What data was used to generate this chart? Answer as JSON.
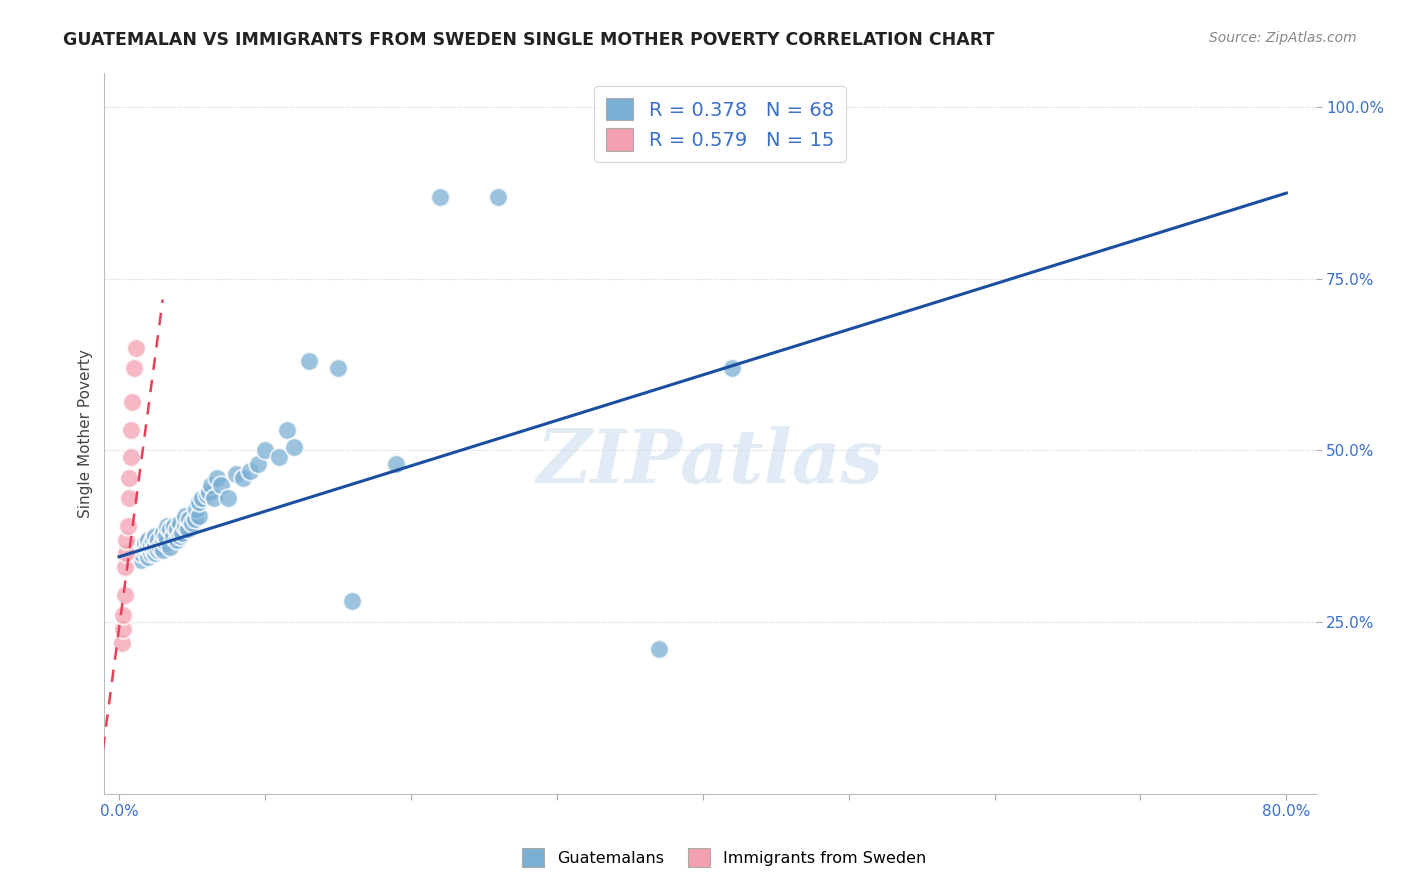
{
  "title": "GUATEMALAN VS IMMIGRANTS FROM SWEDEN SINGLE MOTHER POVERTY CORRELATION CHART",
  "source": "Source: ZipAtlas.com",
  "ylabel": "Single Mother Poverty",
  "xlim": [
    -0.01,
    0.82
  ],
  "ylim": [
    0.0,
    1.05
  ],
  "ytick_positions": [
    0.25,
    0.5,
    0.75,
    1.0
  ],
  "ytick_labels": [
    "25.0%",
    "50.0%",
    "75.0%",
    "100.0%"
  ],
  "guatemalan_R": 0.378,
  "guatemalan_N": 68,
  "sweden_R": 0.579,
  "sweden_N": 15,
  "blue_color": "#7BAFD4",
  "pink_color": "#F4A0B0",
  "blue_line_color": "#1A4FA0",
  "pink_line_color": "#E8405A",
  "watermark": "ZIPatlas",
  "guatemalan_x": [
    0.01,
    0.012,
    0.015,
    0.015,
    0.017,
    0.018,
    0.018,
    0.02,
    0.02,
    0.02,
    0.022,
    0.022,
    0.023,
    0.023,
    0.025,
    0.025,
    0.025,
    0.027,
    0.027,
    0.028,
    0.03,
    0.03,
    0.03,
    0.032,
    0.032,
    0.033,
    0.035,
    0.035,
    0.037,
    0.038,
    0.04,
    0.04,
    0.042,
    0.042,
    0.043,
    0.045,
    0.045,
    0.047,
    0.048,
    0.05,
    0.052,
    0.053,
    0.055,
    0.055,
    0.057,
    0.06,
    0.062,
    0.063,
    0.065,
    0.067,
    0.07,
    0.075,
    0.08,
    0.085,
    0.09,
    0.095,
    0.1,
    0.11,
    0.115,
    0.12,
    0.13,
    0.15,
    0.16,
    0.19,
    0.22,
    0.26,
    0.37,
    0.42
  ],
  "guatemalan_y": [
    0.355,
    0.36,
    0.34,
    0.35,
    0.355,
    0.36,
    0.365,
    0.345,
    0.36,
    0.37,
    0.35,
    0.362,
    0.355,
    0.37,
    0.35,
    0.36,
    0.375,
    0.355,
    0.37,
    0.36,
    0.355,
    0.37,
    0.38,
    0.365,
    0.375,
    0.39,
    0.36,
    0.385,
    0.375,
    0.39,
    0.37,
    0.385,
    0.375,
    0.395,
    0.38,
    0.39,
    0.405,
    0.385,
    0.4,
    0.395,
    0.4,
    0.415,
    0.405,
    0.425,
    0.43,
    0.435,
    0.44,
    0.45,
    0.43,
    0.46,
    0.45,
    0.43,
    0.465,
    0.46,
    0.47,
    0.48,
    0.5,
    0.49,
    0.53,
    0.505,
    0.63,
    0.62,
    0.28,
    0.48,
    0.87,
    0.87,
    0.21,
    0.62
  ],
  "sweden_x": [
    0.002,
    0.003,
    0.003,
    0.004,
    0.004,
    0.005,
    0.005,
    0.006,
    0.007,
    0.007,
    0.008,
    0.008,
    0.009,
    0.01,
    0.012
  ],
  "sweden_y": [
    0.22,
    0.24,
    0.26,
    0.29,
    0.33,
    0.35,
    0.37,
    0.39,
    0.43,
    0.46,
    0.49,
    0.53,
    0.57,
    0.62,
    0.65
  ],
  "blue_line_x": [
    0.0,
    0.8
  ],
  "blue_line_y": [
    0.345,
    0.875
  ],
  "pink_line_x": [
    -0.015,
    0.03
  ],
  "pink_line_y": [
    0.0,
    0.72
  ]
}
